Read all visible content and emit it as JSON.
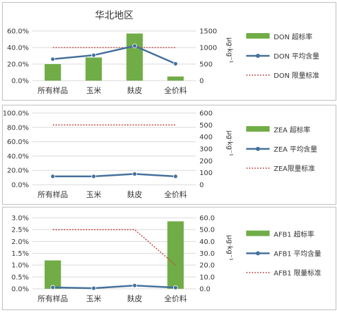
{
  "colors": {
    "bar": "#70ad47",
    "line": "#44709c",
    "limit": "#c0504d",
    "grid": "#d9d9d9",
    "panel_border": "#bfbfbf"
  },
  "chart_data": [
    {
      "type": "bar",
      "title": "华北地区",
      "categories": [
        "所有样品",
        "玉米",
        "麸皮",
        "全价料"
      ],
      "left_axis": {
        "ticks": [
          "0.0%",
          "20.0%",
          "40.0%",
          "60.0%"
        ],
        "lim": [
          0,
          0.6
        ]
      },
      "right_axis": {
        "ticks": [
          "0",
          "500",
          "1000",
          "1500"
        ],
        "lim": [
          0,
          1500
        ],
        "label": "μg·kg⁻¹"
      },
      "series": [
        {
          "name": "DON 超标率",
          "kind": "bar",
          "axis": "left",
          "values": [
            0.2,
            0.28,
            0.57,
            0.05
          ]
        },
        {
          "name": "DON 平均含量",
          "kind": "line",
          "axis": "right",
          "values": [
            650,
            770,
            1050,
            510
          ]
        },
        {
          "name": "DON 限量标准",
          "kind": "limit",
          "axis": "right",
          "values": [
            1000,
            1000,
            1000,
            1000
          ]
        }
      ]
    },
    {
      "type": "bar",
      "title": "",
      "categories": [
        "所有样品",
        "玉米",
        "麸皮",
        "全价料"
      ],
      "left_axis": {
        "ticks": [
          "0.0%",
          "20.0%",
          "40.0%",
          "60.0%",
          "80.0%",
          "100.0%"
        ],
        "lim": [
          0,
          1.0
        ]
      },
      "right_axis": {
        "ticks": [
          "0",
          "100",
          "200",
          "300",
          "400",
          "500",
          "600"
        ],
        "lim": [
          0,
          600
        ],
        "label": "μg·kg⁻¹"
      },
      "series": [
        {
          "name": "ZEA 超标率",
          "kind": "bar",
          "axis": "left",
          "values": [
            0,
            0,
            0,
            0
          ]
        },
        {
          "name": "ZEA 平均含量",
          "kind": "line",
          "axis": "right",
          "values": [
            70,
            70,
            90,
            70
          ]
        },
        {
          "name": "ZEA限量标准",
          "kind": "limit",
          "axis": "right",
          "values": [
            500,
            500,
            500,
            500
          ]
        }
      ]
    },
    {
      "type": "bar",
      "title": "",
      "categories": [
        "所有样品",
        "玉米",
        "麸皮",
        "全价料"
      ],
      "left_axis": {
        "ticks": [
          "0.0%",
          "0.5%",
          "1.0%",
          "1.5%",
          "2.0%",
          "2.5%",
          "3.0%"
        ],
        "lim": [
          0,
          0.03
        ]
      },
      "right_axis": {
        "ticks": [
          "0.0",
          "10.0",
          "20.0",
          "30.0",
          "40.0",
          "50.0",
          "60.0"
        ],
        "lim": [
          0,
          60
        ],
        "label": "μg·kg⁻¹"
      },
      "series": [
        {
          "name": "AFB1 超标率",
          "kind": "bar",
          "axis": "left",
          "values": [
            0.012,
            0,
            0,
            0.0285
          ]
        },
        {
          "name": "AFB1 平均含量",
          "kind": "line",
          "axis": "right",
          "values": [
            1.2,
            0.5,
            2.8,
            1.0
          ]
        },
        {
          "name": "AFB1 限量标准",
          "kind": "limit",
          "axis": "right",
          "values": [
            50,
            50,
            50,
            20
          ]
        }
      ]
    }
  ]
}
